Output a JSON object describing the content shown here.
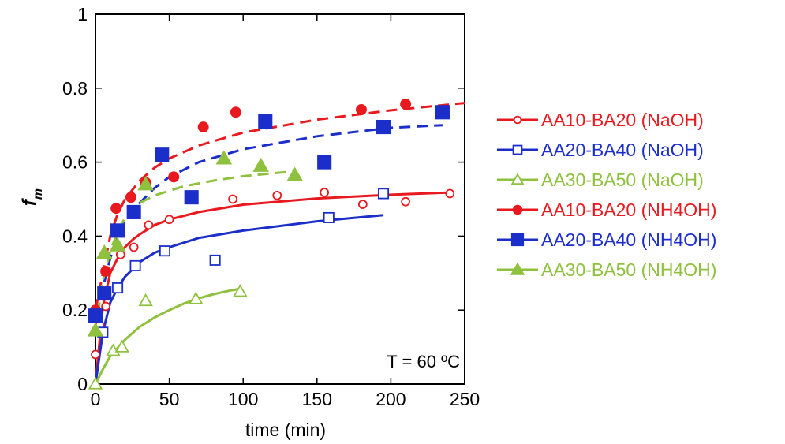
{
  "chart_data": {
    "type": "scatter",
    "title": "",
    "xlabel": "time (min)",
    "ylabel": "f",
    "ylabel_subscript": "m",
    "xlim": [
      0,
      250
    ],
    "ylim": [
      0,
      1
    ],
    "xticks": [
      0,
      50,
      100,
      150,
      200,
      250
    ],
    "yticks": [
      0,
      0.2,
      0.4,
      0.6,
      0.8,
      1
    ],
    "xtick_labels": [
      "0",
      "50",
      "100",
      "150",
      "200",
      "250"
    ],
    "ytick_labels": [
      "0",
      "0.2",
      "0.4",
      "0.6",
      "0.8",
      "1"
    ],
    "grid": false,
    "legend_position": "right",
    "annotation": "T = 60 ºC",
    "series": [
      {
        "name": "AA10-BA20 (NaOH)",
        "color": "#e8191f",
        "marker": "circle",
        "filled": false,
        "fit_style": "solid",
        "points": [
          [
            0,
            0.08
          ],
          [
            3,
            0.16
          ],
          [
            7,
            0.21
          ],
          [
            17,
            0.35
          ],
          [
            26,
            0.37
          ],
          [
            36,
            0.43
          ],
          [
            50,
            0.445
          ],
          [
            93,
            0.5
          ],
          [
            123,
            0.51
          ],
          [
            155,
            0.518
          ],
          [
            181,
            0.486
          ],
          [
            210,
            0.493
          ],
          [
            240,
            0.515
          ]
        ],
        "fit": [
          [
            0,
            0.0
          ],
          [
            5,
            0.21
          ],
          [
            10,
            0.3
          ],
          [
            15,
            0.34
          ],
          [
            20,
            0.37
          ],
          [
            25,
            0.39
          ],
          [
            30,
            0.405
          ],
          [
            40,
            0.43
          ],
          [
            50,
            0.445
          ],
          [
            70,
            0.465
          ],
          [
            100,
            0.485
          ],
          [
            150,
            0.502
          ],
          [
            200,
            0.512
          ],
          [
            240,
            0.518
          ]
        ]
      },
      {
        "name": "AA20-BA40 (NaOH)",
        "color": "#1c2ec9",
        "marker": "square",
        "filled": false,
        "fit_style": "solid",
        "points": [
          [
            0,
            0.185
          ],
          [
            5,
            0.14
          ],
          [
            15,
            0.26
          ],
          [
            27,
            0.32
          ],
          [
            47,
            0.36
          ],
          [
            81,
            0.335
          ],
          [
            158,
            0.45
          ],
          [
            195,
            0.515
          ]
        ],
        "fit": [
          [
            0,
            0.0
          ],
          [
            5,
            0.14
          ],
          [
            10,
            0.22
          ],
          [
            15,
            0.26
          ],
          [
            20,
            0.29
          ],
          [
            30,
            0.33
          ],
          [
            40,
            0.355
          ],
          [
            50,
            0.37
          ],
          [
            70,
            0.395
          ],
          [
            100,
            0.415
          ],
          [
            150,
            0.44
          ],
          [
            195,
            0.457
          ]
        ]
      },
      {
        "name": "AA30-BA50 (NaOH)",
        "color": "#8fc13e",
        "marker": "triangle",
        "filled": false,
        "fit_style": "solid",
        "points": [
          [
            0,
            0.0
          ],
          [
            12,
            0.09
          ],
          [
            18,
            0.1
          ],
          [
            34,
            0.225
          ],
          [
            68,
            0.23
          ],
          [
            98,
            0.25
          ]
        ],
        "fit": [
          [
            0,
            0.0
          ],
          [
            5,
            0.04
          ],
          [
            10,
            0.075
          ],
          [
            20,
            0.12
          ],
          [
            30,
            0.155
          ],
          [
            40,
            0.18
          ],
          [
            50,
            0.2
          ],
          [
            60,
            0.218
          ],
          [
            70,
            0.232
          ],
          [
            80,
            0.243
          ],
          [
            90,
            0.252
          ],
          [
            97,
            0.257
          ]
        ]
      },
      {
        "name": "AA10-BA20 (NH4OH)",
        "color": "#e8191f",
        "marker": "circle",
        "filled": true,
        "fit_style": "dashed",
        "points": [
          [
            0,
            0.2
          ],
          [
            7,
            0.305
          ],
          [
            14,
            0.475
          ],
          [
            24,
            0.505
          ],
          [
            34,
            0.545
          ],
          [
            53,
            0.56
          ],
          [
            73,
            0.695
          ],
          [
            95,
            0.735
          ],
          [
            180,
            0.742
          ],
          [
            210,
            0.757
          ]
        ],
        "fit": [
          [
            0,
            0.2
          ],
          [
            5,
            0.3
          ],
          [
            10,
            0.4
          ],
          [
            15,
            0.46
          ],
          [
            20,
            0.5
          ],
          [
            30,
            0.55
          ],
          [
            40,
            0.585
          ],
          [
            50,
            0.61
          ],
          [
            70,
            0.645
          ],
          [
            100,
            0.68
          ],
          [
            150,
            0.715
          ],
          [
            200,
            0.74
          ],
          [
            250,
            0.76
          ]
        ]
      },
      {
        "name": "AA20-BA40 (NH4OH)",
        "color": "#1c2ec9",
        "marker": "square",
        "filled": true,
        "fit_style": "dashed",
        "points": [
          [
            0,
            0.185
          ],
          [
            6,
            0.245
          ],
          [
            15,
            0.415
          ],
          [
            26,
            0.465
          ],
          [
            45,
            0.62
          ],
          [
            65,
            0.505
          ],
          [
            115,
            0.71
          ],
          [
            155,
            0.6
          ],
          [
            195,
            0.695
          ],
          [
            235,
            0.735
          ]
        ],
        "fit": [
          [
            0,
            0.185
          ],
          [
            5,
            0.26
          ],
          [
            10,
            0.34
          ],
          [
            15,
            0.4
          ],
          [
            20,
            0.44
          ],
          [
            30,
            0.49
          ],
          [
            40,
            0.53
          ],
          [
            50,
            0.56
          ],
          [
            70,
            0.6
          ],
          [
            100,
            0.635
          ],
          [
            150,
            0.67
          ],
          [
            200,
            0.693
          ],
          [
            235,
            0.7
          ]
        ]
      },
      {
        "name": "AA30-BA50 (NH4OH)",
        "color": "#8fc13e",
        "marker": "triangle",
        "filled": true,
        "fit_style": "dashed",
        "points": [
          [
            0,
            0.145
          ],
          [
            6,
            0.355
          ],
          [
            15,
            0.375
          ],
          [
            34,
            0.54
          ],
          [
            87,
            0.61
          ],
          [
            112,
            0.59
          ],
          [
            135,
            0.565
          ]
        ],
        "fit": [
          [
            0,
            0.145
          ],
          [
            5,
            0.28
          ],
          [
            10,
            0.36
          ],
          [
            15,
            0.41
          ],
          [
            20,
            0.45
          ],
          [
            30,
            0.49
          ],
          [
            40,
            0.51
          ],
          [
            60,
            0.535
          ],
          [
            80,
            0.55
          ],
          [
            100,
            0.562
          ],
          [
            120,
            0.57
          ],
          [
            135,
            0.575
          ]
        ]
      }
    ]
  }
}
